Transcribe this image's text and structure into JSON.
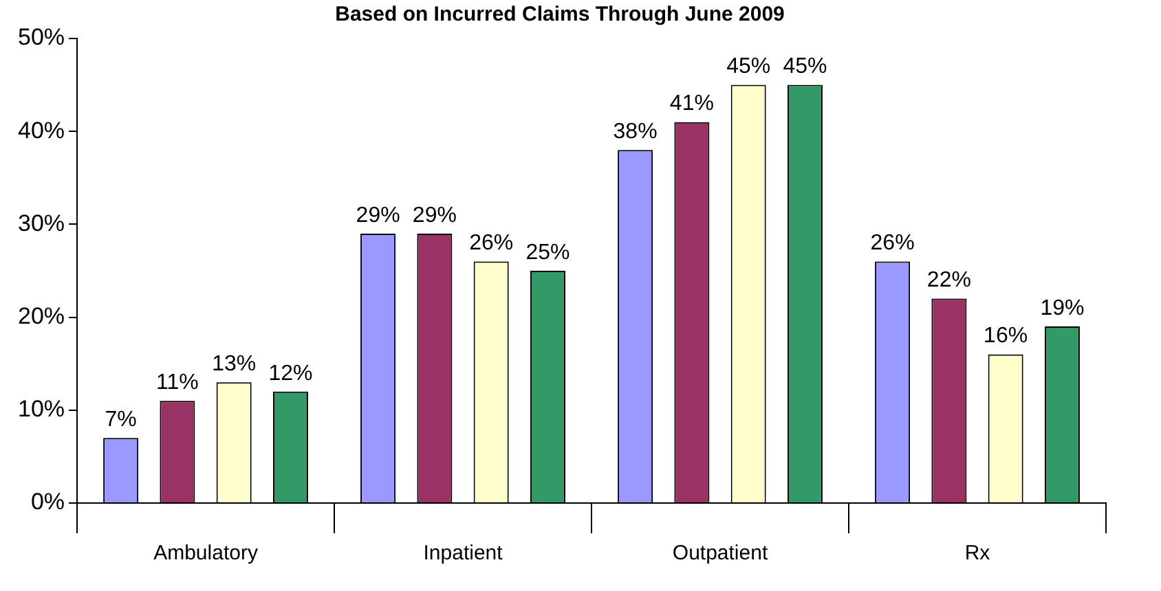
{
  "chart_data": {
    "type": "bar",
    "title": "Based on Incurred Claims Through June 2009",
    "categories": [
      "Ambulatory",
      "Inpatient",
      "Outpatient",
      "Rx"
    ],
    "series": [
      {
        "color": "#9999ff",
        "values": [
          7,
          29,
          38,
          26
        ],
        "value_labels": [
          "7%",
          "29%",
          "38%",
          "26%"
        ]
      },
      {
        "color": "#993366",
        "values": [
          11,
          29,
          41,
          22
        ],
        "value_labels": [
          "11%",
          "29%",
          "41%",
          "22%"
        ]
      },
      {
        "color": "#ffffcc",
        "values": [
          13,
          26,
          45,
          16
        ],
        "value_labels": [
          "13%",
          "26%",
          "45%",
          "16%"
        ]
      },
      {
        "color": "#339966",
        "values": [
          12,
          25,
          45,
          19
        ],
        "value_labels": [
          "12%",
          "25%",
          "45%",
          "19%"
        ]
      }
    ],
    "ylim": [
      0,
      50
    ],
    "yticks": [
      {
        "value": 0,
        "label": "0%"
      },
      {
        "value": 10,
        "label": "10%"
      },
      {
        "value": 20,
        "label": "20%"
      },
      {
        "value": 30,
        "label": "30%"
      },
      {
        "value": 40,
        "label": "40%"
      },
      {
        "value": 50,
        "label": "50%"
      }
    ],
    "grid": false,
    "legend": false
  }
}
